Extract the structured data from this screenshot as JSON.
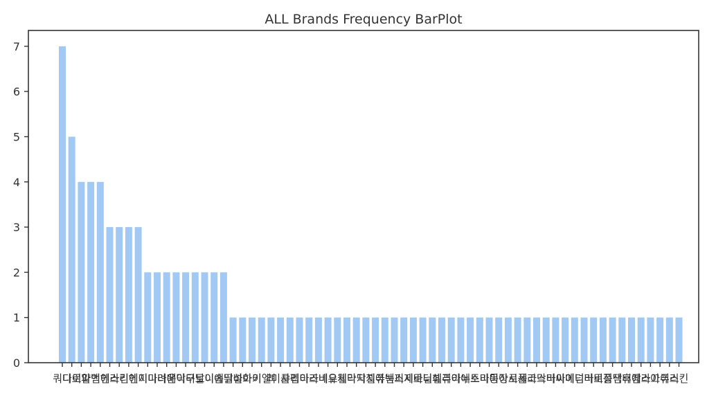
{
  "chart_data": {
    "type": "bar",
    "title": "ALL Brands Frequency BarPlot",
    "xlabel": "",
    "ylabel": "",
    "ylim": [
      0,
      7.35
    ],
    "yticks": [
      0,
      1,
      2,
      3,
      4,
      5,
      6,
      7
    ],
    "grid": false,
    "bar_color": "#a1c9f4",
    "categories": [
      "쿼디",
      "다이",
      "로얄",
      "파인",
      "백인",
      "헤라",
      "스킨",
      "리엔",
      "헤지",
      "이니",
      "마녀",
      "라운",
      "메이",
      "닥터",
      "구달",
      "토니",
      "이솝",
      "에뛰",
      "달바",
      "설화",
      "아이",
      "키엘",
      "려",
      "미샤",
      "클리",
      "펩타",
      "이즈",
      "라네",
      "비오",
      "유세",
      "웰라",
      "닥지",
      "닥지",
      "셀퓨",
      "아벤",
      "눅스",
      "피지",
      "제로",
      "바닐",
      "더페",
      "셀리",
      "퓨리",
      "아누",
      "에스",
      "토리",
      "마몽",
      "미장",
      "아로",
      "시세",
      "폴라",
      "코스",
      "닥터",
      "바이",
      "싸이",
      "메디",
      "넘버",
      "라로",
      "비플",
      "정샘",
      "닥터",
      "휴캄",
      "에스",
      "라끄",
      "아이",
      "퓨리",
      "스킨"
    ],
    "values": [
      7,
      5,
      4,
      4,
      4,
      3,
      3,
      3,
      3,
      2,
      2,
      2,
      2,
      2,
      2,
      2,
      2,
      2,
      1,
      1,
      1,
      1,
      1,
      1,
      1,
      1,
      1,
      1,
      1,
      1,
      1,
      1,
      1,
      1,
      1,
      1,
      1,
      1,
      1,
      1,
      1,
      1,
      1,
      1,
      1,
      1,
      1,
      1,
      1,
      1,
      1,
      1,
      1,
      1,
      1,
      1,
      1,
      1,
      1,
      1,
      1,
      1,
      1,
      1,
      1,
      1
    ]
  }
}
